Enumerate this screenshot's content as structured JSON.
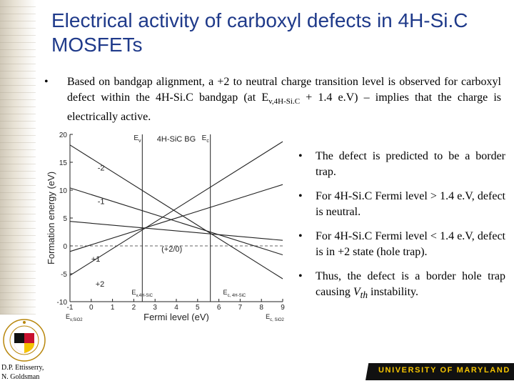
{
  "slide": {
    "title": "Electrical activity of carboxyl defects in 4H-Si.C MOSFETs",
    "intro": {
      "part1": "Based on bandgap alignment, a +2 to neutral charge transition level is observed for carboxyl defect within the 4H-Si.C bandgap  (at E",
      "sub": "v,4H-Si.C",
      "part2": " + 1.4 e.V) – implies that the charge is electrically active."
    },
    "bullets": [
      {
        "text": "The defect is predicted to be a border trap."
      },
      {
        "text": "For 4H-Si.C Fermi level > 1.4 e.V, defect is neutral."
      },
      {
        "text": "For 4H-Si.C Fermi level < 1.4 e.V, defect is in +2 state (hole trap)."
      },
      {
        "pre": "Thus, the defect is a border hole trap causing ",
        "vth": "V",
        "vth_sub": "th",
        "post": " instability."
      }
    ],
    "bullet_glyph": "•",
    "credit_line1": "D.P. Ettisserry,",
    "credit_line2": "N. Goldsman",
    "footer_text": "UNIVERSITY OF MARYLAND",
    "seal_text": "UNIVERSITY OF MARYLAND",
    "title_color": "#1f3a8a",
    "footer_accent": "#f5c400"
  },
  "chart_data": {
    "type": "line",
    "ylabel": "Formation energy (eV)",
    "xlabel": "Fermi level (eV)",
    "xlim": [
      -1,
      9
    ],
    "ylim": [
      -10,
      20
    ],
    "xticks": [
      -1,
      0,
      1,
      2,
      3,
      4,
      5,
      6,
      7,
      8,
      9
    ],
    "yticks": [
      -10,
      -5,
      0,
      5,
      10,
      15,
      20
    ],
    "series": [
      {
        "name": "-2",
        "x": [
          -1,
          9
        ],
        "y": [
          18.1,
          -5.9
        ]
      },
      {
        "name": "-1",
        "x": [
          -1,
          9
        ],
        "y": [
          10.4,
          -1.6
        ]
      },
      {
        "name": "+1",
        "x": [
          -1,
          9
        ],
        "y": [
          -1.0,
          11.0
        ]
      },
      {
        "name": "+2",
        "x": [
          -1,
          9
        ],
        "y": [
          -5.3,
          18.7
        ]
      },
      {
        "name": "0",
        "x": [
          -1,
          9
        ],
        "y": [
          4.4,
          1.0
        ]
      }
    ],
    "hline_y": 0,
    "vlines": [
      {
        "x": 2.4,
        "label": "E",
        "sub": "v"
      },
      {
        "x": 5.6,
        "label": "E",
        "sub": "c"
      }
    ],
    "annotations": {
      "bg_label": "4H-SiC BG",
      "transition": "(+2/0)",
      "ev_4h": "E",
      "ev_4h_sub": "v,4H-SiC",
      "ec_4h": "E",
      "ec_4h_sub": "c, 4H-SiC",
      "ev_sio2": "E",
      "ev_sio2_sub": "v,SiO2",
      "ec_sio2": "E",
      "ec_sio2_sub": "c, SiO2"
    }
  }
}
